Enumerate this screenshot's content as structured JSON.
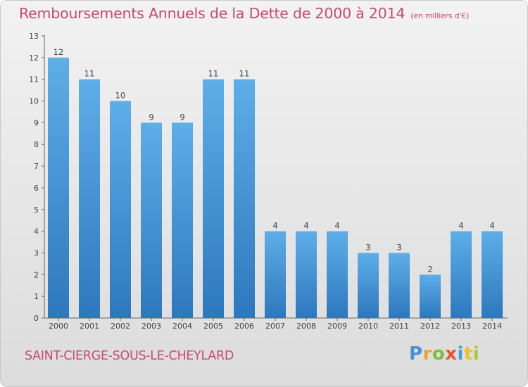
{
  "title": {
    "main": "Remboursements Annuels de la Dette de 2000 à 2014",
    "unit": "(en milliers d'€)"
  },
  "commune": "SAINT-CIERGE-SOUS-LE-CHEYLARD",
  "logo": {
    "text": "Proxiti"
  },
  "colors": {
    "bar_light": "#5eaee8",
    "bar_dark": "#2d78bd",
    "title": "#c84a6e"
  },
  "chart_data": {
    "type": "bar",
    "title": "Remboursements Annuels de la Dette de 2000 à 2014",
    "xlabel": "",
    "ylabel": "",
    "ylim": [
      0,
      13
    ],
    "yticks": [
      0,
      1,
      2,
      3,
      4,
      5,
      6,
      7,
      8,
      9,
      10,
      11,
      12,
      13
    ],
    "grid": false,
    "categories": [
      "2000",
      "2001",
      "2002",
      "2003",
      "2004",
      "2005",
      "2006",
      "2007",
      "2008",
      "2009",
      "2010",
      "2011",
      "2012",
      "2013",
      "2014"
    ],
    "values": [
      12,
      11,
      10,
      9,
      9,
      11,
      11,
      4,
      4,
      4,
      3,
      3,
      2,
      4,
      4
    ]
  }
}
